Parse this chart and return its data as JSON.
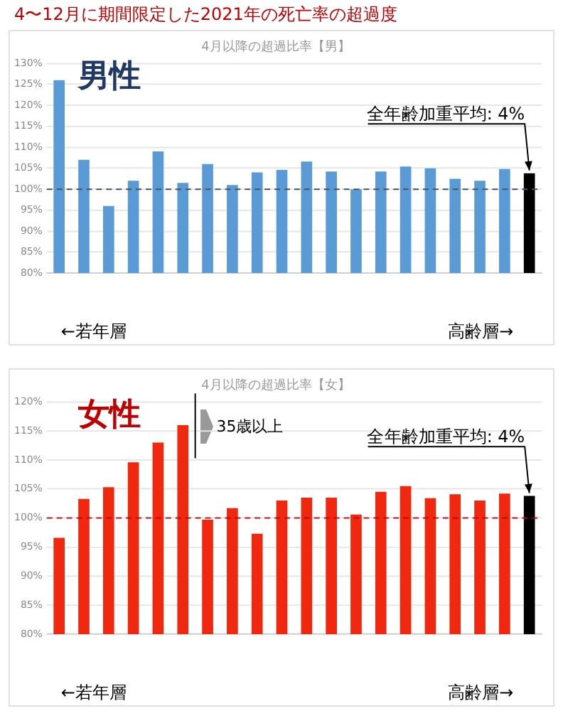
{
  "chart_data": [
    {
      "type": "bar",
      "title": "4〜12月に期間限定した2021年の死亡率の超過度",
      "subtitle": "4月以降の超過比率【男】",
      "categories": [
        null,
        null,
        null,
        null,
        null,
        null,
        null,
        null,
        null,
        null,
        null,
        null,
        null,
        null,
        null,
        null,
        null,
        null,
        null,
        null
      ],
      "values": [
        126,
        107,
        96,
        102,
        109,
        101.5,
        106,
        101,
        104,
        104.6,
        106.6,
        104.2,
        100,
        104.2,
        105.4,
        105,
        102.5,
        102,
        104.8,
        103.8
      ],
      "colors": [
        "#5b9bd5",
        "#5b9bd5",
        "#5b9bd5",
        "#5b9bd5",
        "#5b9bd5",
        "#5b9bd5",
        "#5b9bd5",
        "#5b9bd5",
        "#5b9bd5",
        "#5b9bd5",
        "#5b9bd5",
        "#5b9bd5",
        "#5b9bd5",
        "#5b9bd5",
        "#5b9bd5",
        "#5b9bd5",
        "#5b9bd5",
        "#5b9bd5",
        "#5b9bd5",
        "#000000"
      ],
      "ylim": [
        80,
        130
      ],
      "yticks": [
        {
          "value": 80,
          "label": "80%"
        },
        {
          "value": 85,
          "label": "85%"
        },
        {
          "value": 90,
          "label": "90%"
        },
        {
          "value": 95,
          "label": "95%"
        },
        {
          "value": 100,
          "label": "100%"
        },
        {
          "value": 105,
          "label": "105%"
        },
        {
          "value": 110,
          "label": "110%"
        },
        {
          "value": 115,
          "label": "115%"
        },
        {
          "value": 120,
          "label": "120%"
        },
        {
          "value": 125,
          "label": "125%"
        },
        {
          "value": 130,
          "label": "130%"
        }
      ],
      "grid": "y",
      "ref_lines": [
        {
          "axis": "y",
          "value": 100,
          "color": "#44546a",
          "line_style": "dashed"
        }
      ],
      "annotations": [
        "男性",
        "全年齢加重平均: 4%",
        "←若年層",
        "高齢層→"
      ]
    },
    {
      "type": "bar",
      "subtitle": "4月以降の超過比率【女】",
      "categories": [
        null,
        null,
        null,
        null,
        null,
        null,
        null,
        null,
        null,
        null,
        null,
        null,
        null,
        null,
        null,
        null,
        null,
        null,
        null,
        null
      ],
      "values": [
        96.6,
        103.3,
        105.3,
        109.6,
        113,
        116,
        99.7,
        101.7,
        97.3,
        103,
        103.5,
        103.5,
        100.6,
        104.5,
        105.5,
        103.4,
        104.1,
        103,
        104.2,
        103.8
      ],
      "colors": [
        "#f02810",
        "#f02810",
        "#f02810",
        "#f02810",
        "#f02810",
        "#f02810",
        "#f02810",
        "#f02810",
        "#f02810",
        "#f02810",
        "#f02810",
        "#f02810",
        "#f02810",
        "#f02810",
        "#f02810",
        "#f02810",
        "#f02810",
        "#f02810",
        "#f02810",
        "#000000"
      ],
      "ylim": [
        80,
        120
      ],
      "yticks": [
        {
          "value": 80,
          "label": "80%"
        },
        {
          "value": 85,
          "label": "85%"
        },
        {
          "value": 90,
          "label": "90%"
        },
        {
          "value": 95,
          "label": "95%"
        },
        {
          "value": 100,
          "label": "100%"
        },
        {
          "value": 105,
          "label": "105%"
        },
        {
          "value": 110,
          "label": "110%"
        },
        {
          "value": 115,
          "label": "115%"
        },
        {
          "value": 120,
          "label": "120%"
        }
      ],
      "grid": "y",
      "ref_lines": [
        {
          "axis": "y",
          "value": 100,
          "color": "#c00000",
          "line_style": "dashed"
        }
      ],
      "annotations": [
        "女性",
        "35歳以上",
        "全年齢加重平均: 4%",
        "←若年層",
        "高齢層→"
      ]
    }
  ]
}
